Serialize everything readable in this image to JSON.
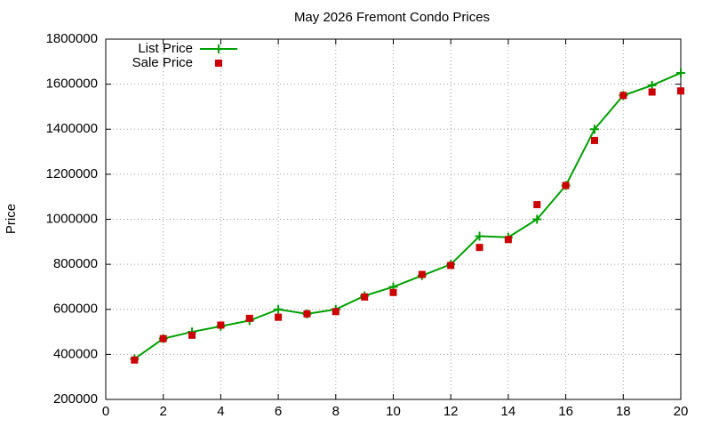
{
  "chart_data": {
    "type": "line",
    "title": "May 2026 Fremont Condo Prices",
    "y_label": "Price",
    "x": [
      1,
      2,
      3,
      4,
      5,
      6,
      7,
      8,
      9,
      10,
      11,
      12,
      13,
      14,
      15,
      16,
      17,
      18,
      19,
      20
    ],
    "series": [
      {
        "name": "List Price",
        "color": "#00a000",
        "marker": "plus",
        "line": true,
        "values": [
          380000,
          470000,
          500000,
          525000,
          550000,
          600000,
          580000,
          600000,
          660000,
          700000,
          750000,
          800000,
          925000,
          920000,
          1000000,
          1150000,
          1400000,
          1550000,
          1595000,
          1650000
        ]
      },
      {
        "name": "Sale Price",
        "color": "#cc0000",
        "marker": "square",
        "line": false,
        "values": [
          375000,
          470000,
          485000,
          530000,
          560000,
          565000,
          580000,
          590000,
          655000,
          675000,
          755000,
          795000,
          875000,
          910000,
          1065000,
          1150000,
          1350000,
          1550000,
          1565000,
          1570000
        ]
      }
    ],
    "xlim": [
      0,
      20
    ],
    "xticks": [
      0,
      2,
      4,
      6,
      8,
      10,
      12,
      14,
      16,
      18,
      20
    ],
    "ylim": [
      200000,
      1800000
    ],
    "yticks": [
      200000,
      400000,
      600000,
      800000,
      1000000,
      1200000,
      1400000,
      1600000,
      1800000
    ],
    "grid": true,
    "legend": "top-left"
  }
}
